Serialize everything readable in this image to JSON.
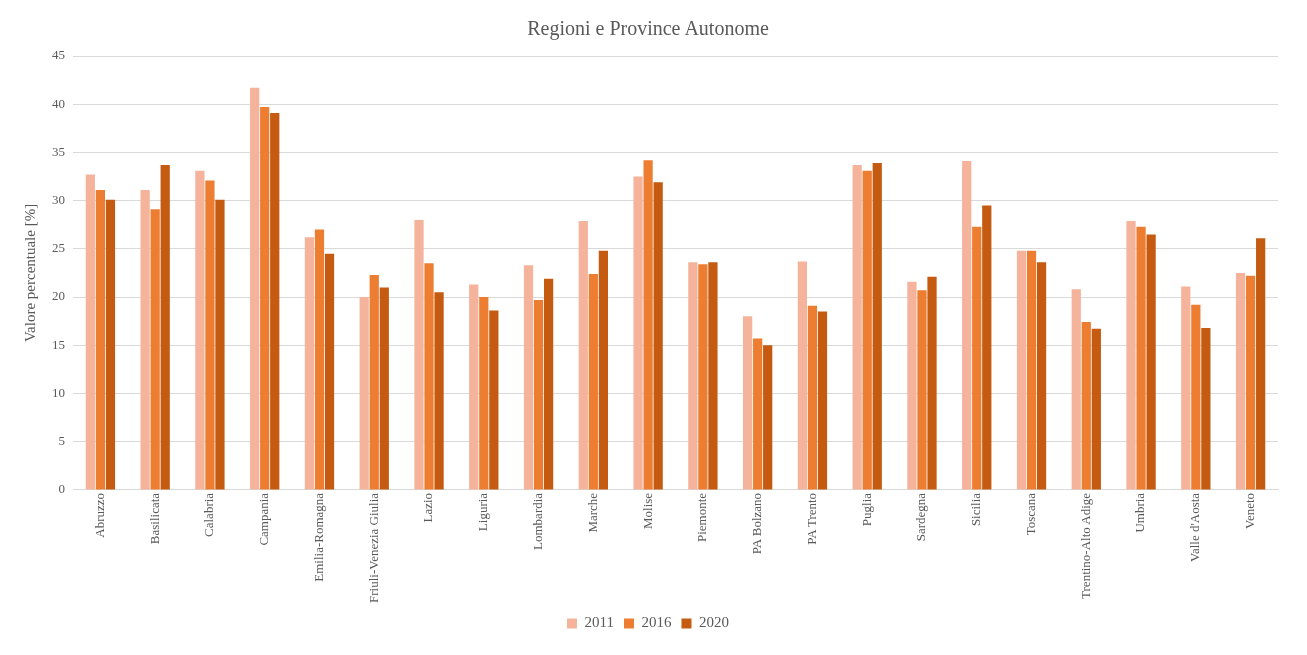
{
  "chart_data": {
    "type": "bar",
    "title": "Regioni e Province Autonome",
    "ylabel": "Valore percentuale [%]",
    "categories": [
      "Abruzzo",
      "Basilicata",
      "Calabria",
      "Campania",
      "Emilia-Romagna",
      "Friuli-Venezia Giulia",
      "Lazio",
      "Liguria",
      "Lombardia",
      "Marche",
      "Molise",
      "Piemonte",
      "PA Bolzano",
      "PA Trento",
      "Puglia",
      "Sardegna",
      "Sicilia",
      "Toscana",
      "Trentino-Alto Adige",
      "Umbria",
      "Valle d'Aosta",
      "Veneto"
    ],
    "series": [
      {
        "name": "2011",
        "color": "#f4b39a",
        "values": [
          32.7,
          31.1,
          33.1,
          41.7,
          26.2,
          20.0,
          28.0,
          21.3,
          23.3,
          27.9,
          32.5,
          23.6,
          18.0,
          23.7,
          33.7,
          21.6,
          34.1,
          24.8,
          20.8,
          27.9,
          21.1,
          22.5
        ]
      },
      {
        "name": "2016",
        "color": "#ed7d31",
        "values": [
          31.1,
          29.1,
          32.1,
          39.7,
          27.0,
          22.3,
          23.5,
          20.0,
          19.7,
          22.4,
          34.2,
          23.4,
          15.7,
          19.1,
          33.1,
          20.7,
          27.3,
          24.8,
          17.4,
          27.3,
          19.2,
          22.2
        ]
      },
      {
        "name": "2020",
        "color": "#c55a11",
        "values": [
          30.1,
          33.7,
          30.1,
          39.1,
          24.5,
          21.0,
          20.5,
          18.6,
          21.9,
          24.8,
          31.9,
          23.6,
          15.0,
          18.5,
          33.9,
          22.1,
          29.5,
          23.6,
          16.7,
          26.5,
          16.8,
          26.1
        ]
      }
    ],
    "ylim": [
      0,
      45
    ],
    "yticks": [
      0,
      5,
      10,
      15,
      20,
      25,
      30,
      35,
      40,
      45
    ],
    "grid": "y",
    "legend": "bottom"
  }
}
